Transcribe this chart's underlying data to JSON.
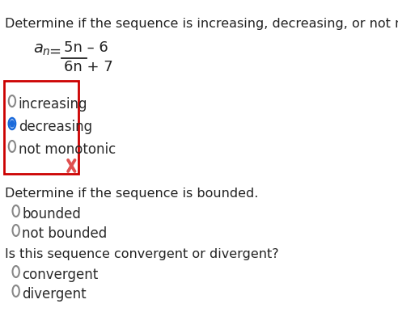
{
  "bg_color": "#ffffff",
  "text_color": "#1a1a2e",
  "dark_text": "#222222",
  "question1": "Determine if the sequence is increasing, decreasing, or not monotonic.",
  "formula_an": "a",
  "formula_n": "n",
  "formula_eq": " = ",
  "formula_num": "5n – 6",
  "formula_den": "6n + 7",
  "options1": [
    "increasing",
    "decreasing",
    "not monotonic"
  ],
  "selected1": 1,
  "box_color": "#cc0000",
  "x_mark_color": "#e05050",
  "question2": "Determine if the sequence is bounded.",
  "options2": [
    "bounded",
    "not bounded"
  ],
  "question3": "Is this sequence convergent or divergent?",
  "options3": [
    "convergent",
    "divergent"
  ],
  "radio_unselected_edge": "#888888",
  "radio_selected_edge": "#1a6adb",
  "radio_selected_fill": "#1a6adb",
  "radio_unselected_fill": "#ffffff",
  "option_text_color": "#2a2a2a",
  "fontsize_question": 11.5,
  "fontsize_formula": 13,
  "fontsize_option": 12
}
